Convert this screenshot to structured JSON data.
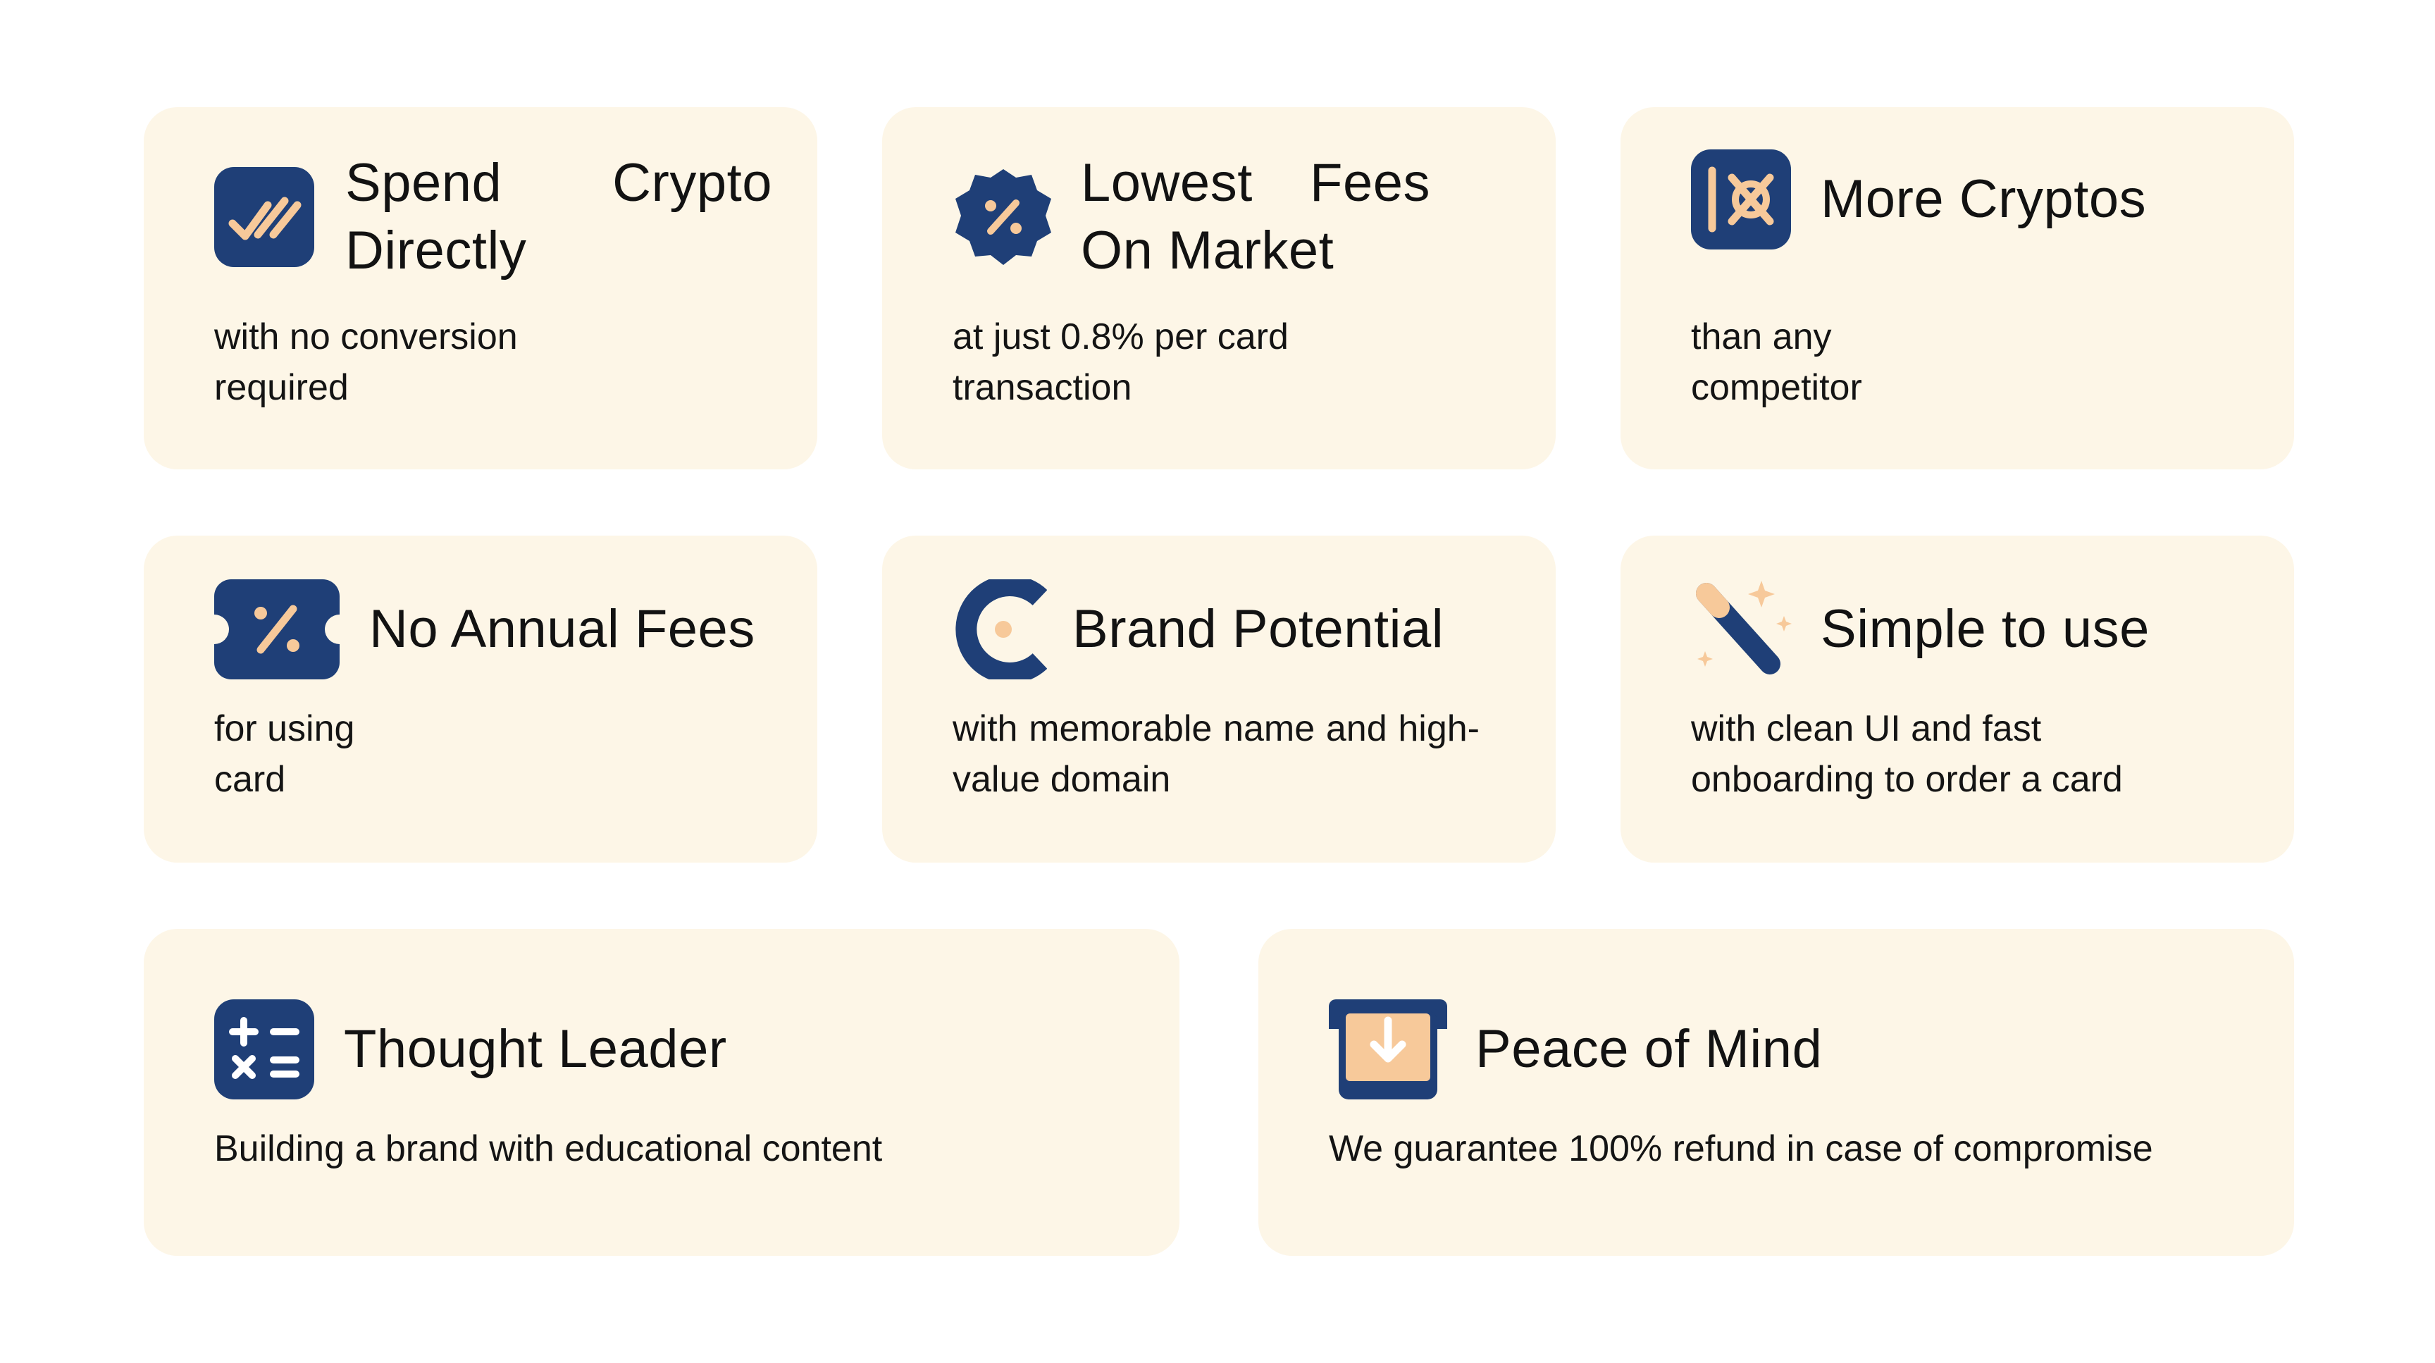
{
  "features": {
    "spend_crypto": {
      "title": "Spend Crypto Directly",
      "description": "with no conversion required",
      "icon": "double-check-icon"
    },
    "lowest_fees": {
      "title": "Lowest Fees On Market",
      "description": "at just 0.8% per card transaction",
      "icon": "percent-badge-icon"
    },
    "more_cryptos": {
      "title": "More Cryptos",
      "description": "than any competitor",
      "icon": "crypto-network-icon"
    },
    "no_annual_fees": {
      "title": "No Annual Fees",
      "description": "for using card",
      "icon": "discount-ticket-icon"
    },
    "brand_potential": {
      "title": "Brand Potential",
      "description": "with memorable name and high-value domain",
      "icon": "brand-c-icon"
    },
    "simple_to_use": {
      "title": "Simple to use",
      "description": "with clean UI and fast onboarding to order a card",
      "icon": "magic-wand-icon"
    },
    "thought_leader": {
      "title": "Thought Leader",
      "description": "Building a brand with educational content",
      "icon": "calculator-icon"
    },
    "peace_of_mind": {
      "title": "Peace of Mind",
      "description": "We guarantee 100% refund in case of compromise",
      "icon": "download-tray-icon"
    }
  },
  "colors": {
    "card_background": "#fdf6e7",
    "icon_navy": "#1f3f77",
    "icon_accent": "#f7c99a",
    "text": "#121212"
  }
}
